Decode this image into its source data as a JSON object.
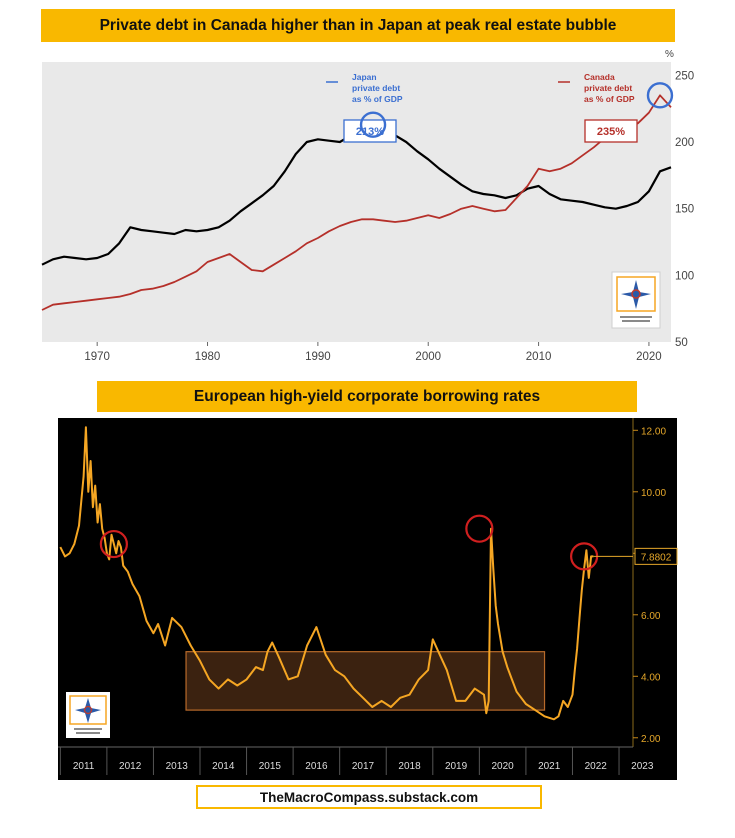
{
  "banner1": {
    "title": "Private debt in Canada higher than in Japan at peak real estate bubble"
  },
  "banner2": {
    "title": "European high-yield corporate borrowing rates"
  },
  "footer": {
    "text": "TheMacroCompass.substack.com"
  },
  "colors": {
    "banner": "#f9b800",
    "japan": "#000000",
    "canada": "#b5302a",
    "annotation_blue": "#3b6fd1",
    "hy_line": "#f5a623",
    "hy_bg": "#000000",
    "plot_bg": "#e9e9e9"
  },
  "chart_data": [
    {
      "type": "line",
      "unit_label": "%",
      "xlim": [
        1965,
        2022
      ],
      "ylim": [
        50,
        260
      ],
      "x_ticks": [
        "1970",
        "1980",
        "1990",
        "2000",
        "2010",
        "2020"
      ],
      "y_ticks": [
        "50",
        "100",
        "150",
        "200",
        "250"
      ],
      "grid": false,
      "legend_placement": "top",
      "series": [
        {
          "name": "Japan private debt as % of GDP",
          "color": "#000000",
          "x": [
            1965,
            1966,
            1967,
            1968,
            1969,
            1970,
            1971,
            1972,
            1973,
            1974,
            1975,
            1976,
            1977,
            1978,
            1979,
            1980,
            1981,
            1982,
            1983,
            1984,
            1985,
            1986,
            1987,
            1988,
            1989,
            1990,
            1991,
            1992,
            1993,
            1994,
            1995,
            1996,
            1997,
            1998,
            1999,
            2000,
            2001,
            2002,
            2003,
            2004,
            2005,
            2006,
            2007,
            2008,
            2009,
            2010,
            2011,
            2012,
            2013,
            2014,
            2015,
            2016,
            2017,
            2018,
            2019,
            2020,
            2021,
            2022
          ],
          "values": [
            108,
            112,
            114,
            113,
            112,
            113,
            116,
            124,
            136,
            134,
            133,
            132,
            131,
            134,
            133,
            134,
            136,
            141,
            148,
            154,
            160,
            167,
            178,
            191,
            200,
            202,
            201,
            200,
            205,
            210,
            213,
            208,
            205,
            200,
            193,
            187,
            180,
            174,
            168,
            163,
            161,
            160,
            158,
            160,
            165,
            167,
            161,
            157,
            156,
            155,
            153,
            151,
            150,
            152,
            155,
            163,
            178,
            181
          ]
        },
        {
          "name": "Canada private debt as % of GDP",
          "color": "#b5302a",
          "x": [
            1965,
            1966,
            1967,
            1968,
            1969,
            1970,
            1971,
            1972,
            1973,
            1974,
            1975,
            1976,
            1977,
            1978,
            1979,
            1980,
            1981,
            1982,
            1983,
            1984,
            1985,
            1986,
            1987,
            1988,
            1989,
            1990,
            1991,
            1992,
            1993,
            1994,
            1995,
            1996,
            1997,
            1998,
            1999,
            2000,
            2001,
            2002,
            2003,
            2004,
            2005,
            2006,
            2007,
            2008,
            2009,
            2010,
            2011,
            2012,
            2013,
            2014,
            2015,
            2016,
            2017,
            2018,
            2019,
            2020,
            2021,
            2022
          ],
          "values": [
            74,
            78,
            79,
            80,
            81,
            82,
            83,
            84,
            86,
            89,
            90,
            92,
            95,
            99,
            103,
            110,
            113,
            116,
            110,
            104,
            103,
            108,
            113,
            118,
            124,
            128,
            133,
            137,
            140,
            142,
            142,
            141,
            140,
            141,
            143,
            145,
            143,
            146,
            150,
            152,
            150,
            148,
            149,
            158,
            167,
            180,
            178,
            180,
            184,
            190,
            196,
            203,
            208,
            210,
            214,
            222,
            235,
            226
          ]
        }
      ],
      "annotations": [
        {
          "text": "213%",
          "series": "Japan private debt as % of GDP",
          "x": 1995,
          "value": 213
        },
        {
          "text": "235%",
          "series": "Canada private debt as % of GDP",
          "x": 2021,
          "value": 235
        }
      ],
      "legend": [
        {
          "name_lines": [
            "Japan",
            "private debt",
            "as % of GDP"
          ]
        },
        {
          "name_lines": [
            "Canada",
            "private debt",
            "as % of GDP"
          ]
        }
      ]
    },
    {
      "type": "line",
      "title": "European high-yield corporate borrowing rates",
      "xlim": [
        2010.95,
        2023.3
      ],
      "ylim": [
        1.7,
        12.4
      ],
      "x_ticks": [
        "2011",
        "2012",
        "2013",
        "2014",
        "2015",
        "2016",
        "2017",
        "2018",
        "2019",
        "2020",
        "2021",
        "2022",
        "2023"
      ],
      "y_ticks": [
        "2.00",
        "4.00",
        "6.00",
        "8.00",
        "10.00",
        "12.00"
      ],
      "last_value_label": "7.8802",
      "grid": false,
      "series": [
        {
          "name": "European high-yield corporate borrowing rates",
          "color": "#f5a623",
          "x": [
            2011.0,
            2011.1,
            2011.2,
            2011.3,
            2011.4,
            2011.5,
            2011.55,
            2011.6,
            2011.65,
            2011.7,
            2011.75,
            2011.8,
            2011.85,
            2011.9,
            2011.95,
            2012.0,
            2012.05,
            2012.1,
            2012.15,
            2012.2,
            2012.25,
            2012.3,
            2012.35,
            2012.45,
            2012.55,
            2012.7,
            2012.85,
            2013.0,
            2013.1,
            2013.25,
            2013.4,
            2013.6,
            2013.8,
            2014.0,
            2014.2,
            2014.4,
            2014.6,
            2014.8,
            2015.0,
            2015.2,
            2015.35,
            2015.45,
            2015.55,
            2015.7,
            2015.9,
            2016.1,
            2016.3,
            2016.5,
            2016.7,
            2016.9,
            2017.1,
            2017.3,
            2017.5,
            2017.7,
            2017.9,
            2018.1,
            2018.3,
            2018.5,
            2018.7,
            2018.9,
            2019.0,
            2019.15,
            2019.3,
            2019.5,
            2019.7,
            2019.9,
            2020.1,
            2020.15,
            2020.2,
            2020.25,
            2020.3,
            2020.35,
            2020.4,
            2020.5,
            2020.6,
            2020.7,
            2020.8,
            2021.0,
            2021.2,
            2021.4,
            2021.6,
            2021.7,
            2021.8,
            2021.9,
            2022.0,
            2022.05,
            2022.1,
            2022.15,
            2022.2,
            2022.25,
            2022.3,
            2022.35,
            2022.4,
            2022.45
          ],
          "values": [
            8.2,
            7.9,
            8.0,
            8.3,
            8.9,
            10.5,
            12.1,
            10.0,
            11.0,
            9.5,
            10.2,
            9.0,
            9.6,
            8.8,
            8.5,
            8.0,
            7.8,
            8.6,
            8.3,
            8.0,
            8.4,
            8.2,
            7.6,
            7.4,
            7.0,
            6.6,
            5.8,
            5.4,
            5.7,
            5.0,
            5.9,
            5.6,
            5.0,
            4.5,
            3.9,
            3.6,
            3.9,
            3.7,
            3.9,
            4.3,
            4.2,
            4.8,
            5.1,
            4.6,
            3.9,
            4.0,
            5.0,
            5.6,
            4.7,
            4.2,
            4.0,
            3.6,
            3.3,
            3.0,
            3.2,
            3.0,
            3.3,
            3.4,
            3.9,
            4.2,
            5.2,
            4.7,
            4.2,
            3.2,
            3.2,
            3.6,
            3.4,
            2.8,
            3.2,
            8.8,
            7.5,
            6.3,
            5.7,
            4.8,
            4.3,
            3.9,
            3.5,
            3.1,
            2.9,
            2.7,
            2.6,
            2.7,
            3.2,
            3.0,
            3.4,
            4.2,
            4.9,
            5.9,
            6.8,
            7.5,
            8.1,
            7.2,
            7.9,
            7.9
          ]
        }
      ],
      "shaded_range": {
        "x": [
          2013.7,
          2021.4
        ],
        "y": [
          2.9,
          4.8
        ]
      },
      "highlights": [
        {
          "x": 2012.15,
          "value": 8.3
        },
        {
          "x": 2020.0,
          "value": 8.8
        },
        {
          "x": 2022.25,
          "value": 7.9
        }
      ]
    }
  ]
}
